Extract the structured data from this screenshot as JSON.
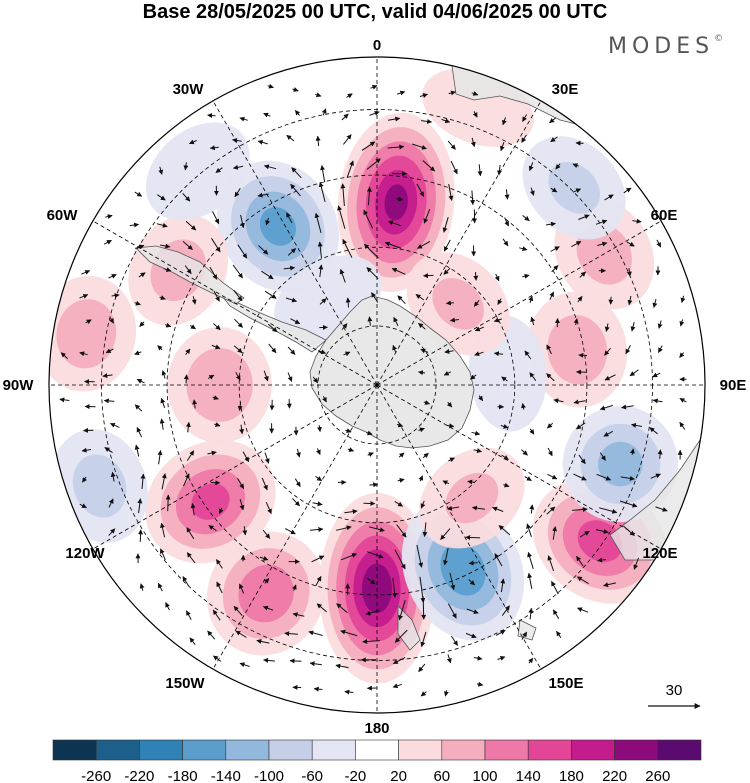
{
  "title": "Base 28/05/2025 00 UTC, valid 04/06/2025 00 UTC",
  "brand": "MODES",
  "brand_mark": "©",
  "map": {
    "projection": "south-polar-stereographic",
    "longitude_labels": [
      "0",
      "30E",
      "60E",
      "90E",
      "120E",
      "150E",
      "180",
      "150W",
      "120W",
      "90W",
      "60W",
      "30W"
    ],
    "reference_vector": "30",
    "colors": {
      "land": "#e6e6e6",
      "coast": "#555555",
      "grid": "#000000"
    }
  },
  "colorbar": {
    "ticks": [
      "-260",
      "-220",
      "-180",
      "-140",
      "-100",
      "-60",
      "-20",
      "20",
      "60",
      "100",
      "140",
      "180",
      "220",
      "260"
    ],
    "colors": [
      "#0d3450",
      "#1b5f8a",
      "#2e82b5",
      "#5b9ecd",
      "#93b8dd",
      "#c5d0e8",
      "#e4e5f2",
      "#ffffff",
      "#fadcde",
      "#f5aebe",
      "#ee79a8",
      "#e34697",
      "#c41c8d",
      "#8c0a7b",
      "#5b0a70"
    ]
  },
  "field": {
    "description_units": "data levels match colorbar ticks",
    "anomalies": [
      {
        "lon": 6,
        "rad": 0.56,
        "value": 230
      },
      {
        "lon": 328,
        "rad": 0.57,
        "value": -150
      },
      {
        "lon": 270,
        "rad": 0.48,
        "value": 90
      },
      {
        "lon": 300,
        "rad": 0.7,
        "value": 70
      },
      {
        "lon": 208,
        "rad": 0.72,
        "value": 130
      },
      {
        "lon": 235,
        "rad": 0.62,
        "value": 150
      },
      {
        "lon": 180,
        "rad": 0.62,
        "value": 250
      },
      {
        "lon": 155,
        "rad": 0.62,
        "value": -170
      },
      {
        "lon": 125,
        "rad": 0.83,
        "value": 160
      },
      {
        "lon": 108,
        "rad": 0.78,
        "value": -110
      },
      {
        "lon": 80,
        "rad": 0.62,
        "value": 80
      },
      {
        "lon": 60,
        "rad": 0.8,
        "value": 70
      },
      {
        "lon": 140,
        "rad": 0.45,
        "value": 60
      },
      {
        "lon": 85,
        "rad": 0.4,
        "value": -40
      },
      {
        "lon": 45,
        "rad": 0.85,
        "value": -60
      },
      {
        "lon": 280,
        "rad": 0.9,
        "value": 80
      },
      {
        "lon": 320,
        "rad": 0.85,
        "value": -50
      },
      {
        "lon": 250,
        "rad": 0.9,
        "value": -70
      },
      {
        "lon": 20,
        "rad": 0.9,
        "value": 30
      },
      {
        "lon": 330,
        "rad": 0.3,
        "value": -40
      },
      {
        "lon": 45,
        "rad": 0.35,
        "value": 60
      }
    ]
  }
}
